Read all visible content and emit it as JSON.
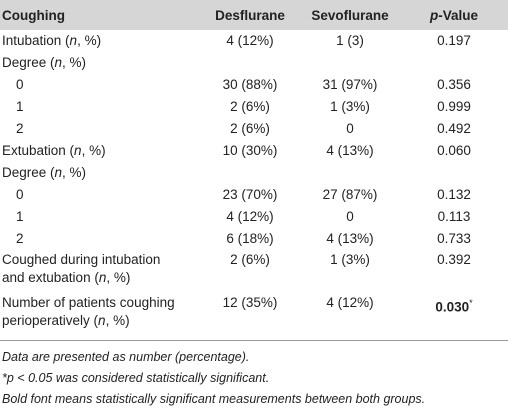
{
  "table": {
    "header": [
      "Coughing",
      "Desflurane",
      "Sevoflurane",
      "p-Value"
    ],
    "rows": [
      [
        "Intubation (n, %)",
        "4 (12%)",
        "1 (3)",
        "0.197"
      ],
      [
        "Degree (n, %)",
        "",
        "",
        ""
      ],
      [
        "0",
        "30 (88%)",
        "31 (97%)",
        "0.356"
      ],
      [
        "1",
        "2 (6%)",
        "1 (3%)",
        "0.999"
      ],
      [
        "2",
        "2 (6%)",
        "0",
        "0.492"
      ],
      [
        "Extubation (n, %)",
        "10 (30%)",
        "4 (13%)",
        "0.060"
      ],
      [
        "Degree (n, %)",
        "",
        "",
        ""
      ],
      [
        "0",
        "23 (70%)",
        "27 (87%)",
        "0.132"
      ],
      [
        "1",
        "4 (12%)",
        "0",
        "0.113"
      ],
      [
        "2",
        "6 (18%)",
        "4 (13%)",
        "0.733"
      ],
      [
        "Coughed during intubation\nand extubation (n, %)",
        "2 (6%)",
        "1 (3%)",
        "0.392"
      ],
      [
        "Number of patients coughing\nperioperatively (n, %)",
        "12 (35%)",
        "4 (12%)",
        "0.030*"
      ]
    ]
  },
  "notes": [
    "Data are presented as number (percentage).",
    "*p < 0.05 was considered statistically significant.",
    "Bold font means statistically significant measurements between both groups."
  ]
}
